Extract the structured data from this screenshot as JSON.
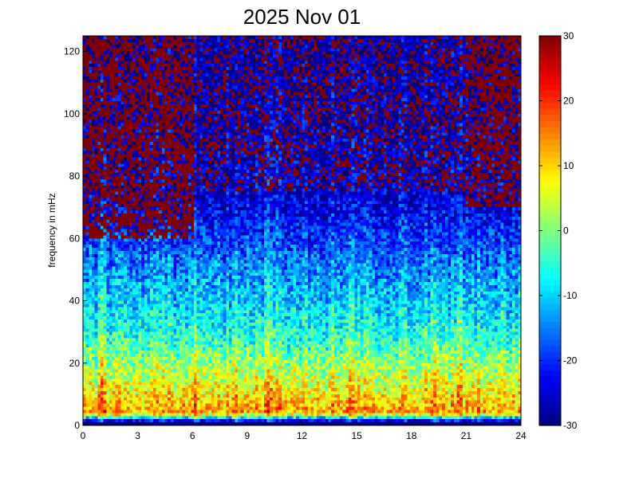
{
  "chart_data": {
    "type": "heatmap",
    "title": "2025 Nov 01",
    "xlabel": "",
    "ylabel": "frequency in mHz",
    "xlim": [
      0,
      24
    ],
    "ylim": [
      0,
      125
    ],
    "x_ticks": [
      0,
      3,
      6,
      9,
      12,
      15,
      18,
      21,
      24
    ],
    "y_ticks": [
      0,
      20,
      40,
      60,
      80,
      100,
      120
    ],
    "colorbar": {
      "colormap": "jet",
      "range": [
        -30,
        30
      ],
      "ticks": [
        30,
        20,
        10,
        0,
        -10,
        -20,
        -30
      ]
    },
    "grid": false,
    "resolution": {
      "time_bins": 150,
      "freq_bins": 125
    },
    "profile": {
      "description_levels_by_frequency_mHz": [
        {
          "freq": 1,
          "level": -30
        },
        {
          "freq": 4,
          "level": 14
        },
        {
          "freq": 15,
          "level": 5
        },
        {
          "freq": 30,
          "level": -6
        },
        {
          "freq": 50,
          "level": -14
        },
        {
          "freq": 70,
          "level": -24
        },
        {
          "freq": 125,
          "level": -27
        }
      ],
      "saturated_regions": [
        {
          "t_range": [
            0,
            6
          ],
          "f_range": [
            60,
            125
          ],
          "level": 30
        },
        {
          "t_range": [
            21,
            24
          ],
          "f_range": [
            70,
            125
          ],
          "level": 30
        },
        {
          "t_range": [
            6,
            21
          ],
          "f_range": [
            75,
            125
          ],
          "level": 30,
          "density": "sparse"
        }
      ],
      "bright_streaks_hours": [
        1.0,
        6.2,
        8.3,
        10.2,
        14.6,
        19.3,
        20.6
      ]
    }
  }
}
